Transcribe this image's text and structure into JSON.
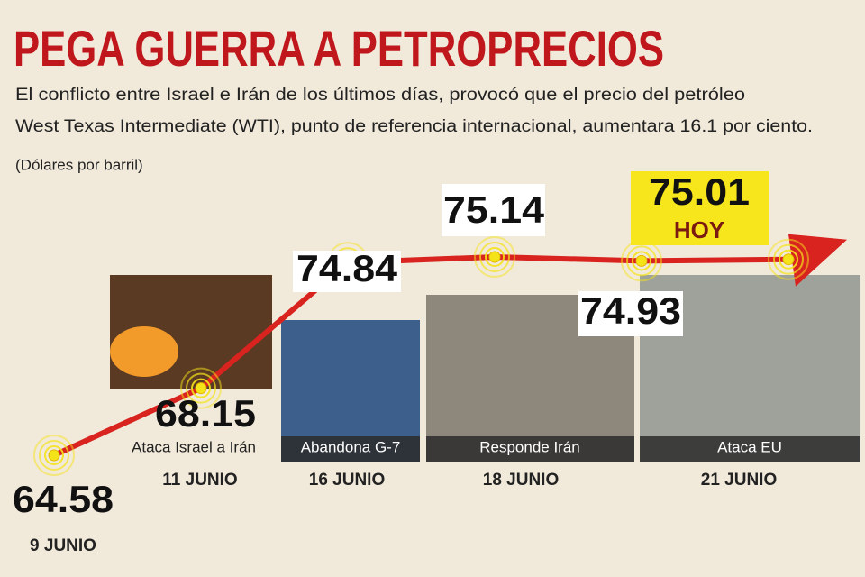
{
  "chart_data": {
    "type": "line",
    "title": "PEGA GUERRA A PETROPRECIOS",
    "subtitle_lines": [
      "El conflicto entre Israel e Irán de los últimos días, provocó que el precio del petróleo",
      "West Texas Intermediate (WTI), punto de referencia internacional, aumentara 16.1 por ciento."
    ],
    "unit_label": "(Dólares por barril)",
    "categories": [
      "9 JUNIO",
      "11 JUNIO",
      "16 JUNIO",
      "18 JUNIO",
      "21 JUNIO",
      null
    ],
    "values": [
      64.58,
      68.15,
      74.84,
      75.14,
      74.93,
      75.01
    ],
    "events": [
      null,
      "Ataca Israel a Irán",
      "Abandona G-7",
      "Responde Irán",
      "Ataca EU",
      null
    ],
    "today_label": "HOY",
    "color": "#d8231f",
    "point_color": "#f5e31a"
  }
}
